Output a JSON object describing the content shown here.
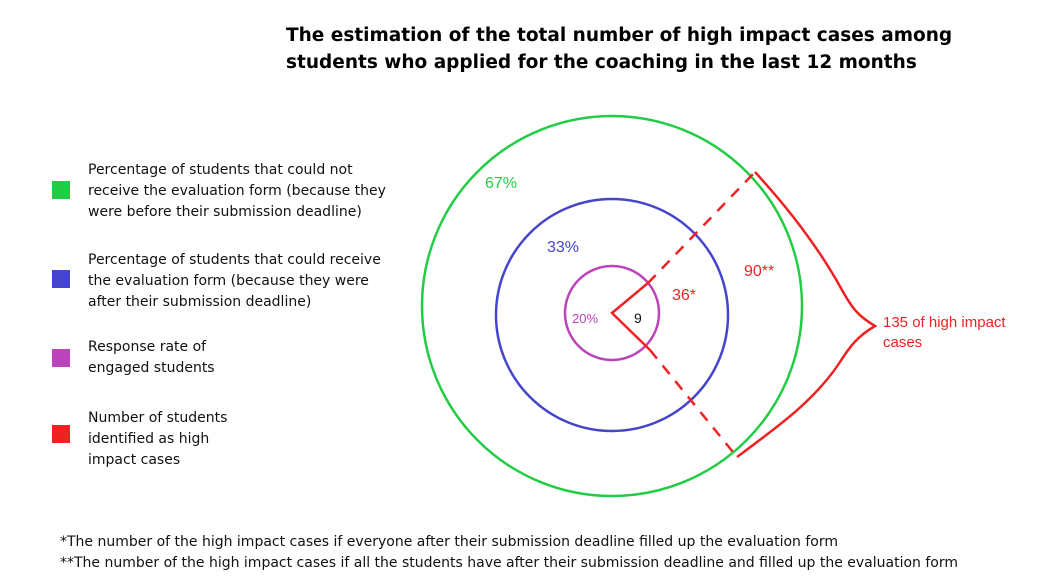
{
  "title": {
    "line1": "The estimation of the total number of high impact cases among",
    "line2": "students who applied for the coaching in the last 12 months"
  },
  "legend": [
    {
      "color": "#22cc44",
      "lines": [
        "Percentage of students that could not",
        "receive the evaluation form (because they",
        "were before their submission deadline)"
      ]
    },
    {
      "color": "#4444cc",
      "lines": [
        "Percentage of students that could receive",
        "the evaluation form (because they were",
        "after their submission deadline)"
      ]
    },
    {
      "color": "#bb44bb",
      "lines": [
        "Response rate of",
        "engaged students"
      ]
    },
    {
      "color": "#ee2222",
      "lines": [
        "Number of students",
        "identified as high",
        "impact cases"
      ]
    }
  ],
  "diagram": {
    "outer_label": "67%",
    "middle_label": "33%",
    "inner_label": "20%",
    "inner_value": "9",
    "middle_value": "36*",
    "outer_value": "90**",
    "callout": {
      "line1": "135 of high impact",
      "line2": "cases"
    },
    "colors": {
      "outer": "#22cc44",
      "middle": "#4444cc",
      "inner": "#bb44bb",
      "cases": "#ee2222"
    }
  },
  "footnotes": [
    "*The number of the high impact cases if everyone after their submission deadline filled up the evaluation form",
    "**The number of the high impact cases if all the students have after their submission deadline and filled up the evaluation form"
  ]
}
